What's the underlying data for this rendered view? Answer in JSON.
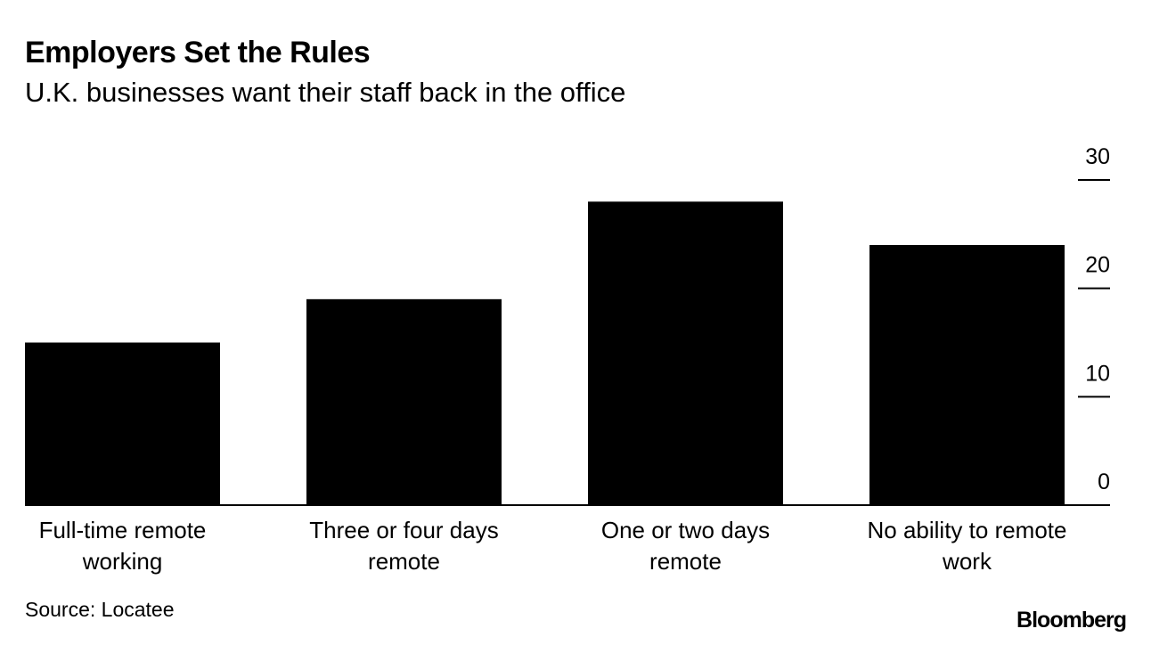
{
  "title": "Employers Set the Rules",
  "subtitle": "U.K. businesses want their staff back in the office",
  "source": "Source: Locatee",
  "logo": "Bloomberg",
  "chart_data": {
    "type": "bar",
    "categories": [
      "Full-time remote working",
      "Three or four days remote",
      "One or two days remote",
      "No ability to remote work"
    ],
    "values": [
      15,
      19,
      28,
      24
    ],
    "color": "#000000",
    "ylim": [
      0,
      30
    ],
    "yticks": [
      0,
      10,
      20,
      30
    ],
    "y_axis_side": "right"
  }
}
